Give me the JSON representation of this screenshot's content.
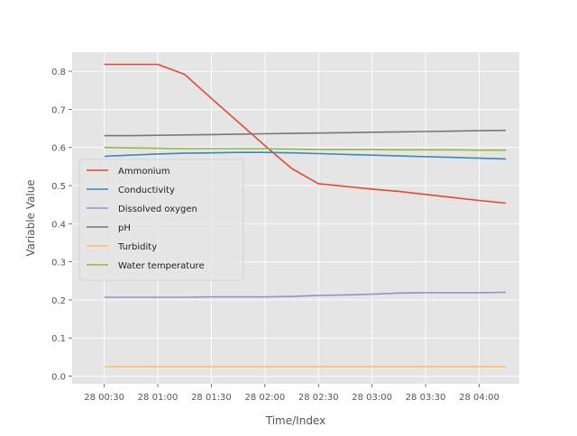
{
  "chart_data": {
    "type": "line",
    "title": "",
    "xlabel": "Time/Index",
    "ylabel": "Variable Value",
    "x": [
      "00:30",
      "00:45",
      "01:00",
      "01:15",
      "01:30",
      "01:45",
      "02:00",
      "02:15",
      "02:30",
      "02:45",
      "03:00",
      "03:15",
      "03:30",
      "03:45",
      "04:00",
      "04:15"
    ],
    "x_tick_labels": [
      "28 00:30",
      "28 01:00",
      "28 01:30",
      "28 02:00",
      "28 02:30",
      "28 03:00",
      "28 03:30",
      "28 04:00"
    ],
    "ylim": [
      -0.02,
      0.85
    ],
    "y_ticks": [
      0.0,
      0.1,
      0.2,
      0.3,
      0.4,
      0.5,
      0.6,
      0.7,
      0.8
    ],
    "y_tick_labels": [
      "0.0",
      "0.1",
      "0.2",
      "0.3",
      "0.4",
      "0.5",
      "0.6",
      "0.7",
      "0.8"
    ],
    "grid": true,
    "style": "ggplot",
    "legend_position": "center-left",
    "series": [
      {
        "name": "Ammonium",
        "color": "#E24A33",
        "values": [
          0.818,
          0.818,
          0.818,
          0.792,
          0.729,
          0.667,
          0.605,
          0.545,
          0.505,
          0.498,
          0.491,
          0.485,
          0.477,
          0.469,
          0.461,
          0.454
        ]
      },
      {
        "name": "Conductivity",
        "color": "#348ABD",
        "values": [
          0.577,
          0.58,
          0.583,
          0.585,
          0.586,
          0.587,
          0.587,
          0.586,
          0.584,
          0.582,
          0.58,
          0.578,
          0.576,
          0.574,
          0.572,
          0.57
        ]
      },
      {
        "name": "Dissolved oxygen",
        "color": "#988ED5",
        "values": [
          0.207,
          0.207,
          0.207,
          0.207,
          0.208,
          0.208,
          0.208,
          0.209,
          0.212,
          0.213,
          0.215,
          0.218,
          0.219,
          0.219,
          0.219,
          0.22
        ]
      },
      {
        "name": "pH",
        "color": "#777777",
        "values": [
          0.631,
          0.631,
          0.632,
          0.633,
          0.634,
          0.635,
          0.636,
          0.637,
          0.638,
          0.639,
          0.64,
          0.641,
          0.642,
          0.643,
          0.644,
          0.645
        ]
      },
      {
        "name": "Turbidity",
        "color": "#FBC15E",
        "values": [
          0.025,
          0.025,
          0.025,
          0.025,
          0.025,
          0.025,
          0.025,
          0.025,
          0.025,
          0.025,
          0.025,
          0.025,
          0.025,
          0.025,
          0.025,
          0.025
        ]
      },
      {
        "name": "Water temperature",
        "color": "#8EBA42",
        "values": [
          0.6,
          0.599,
          0.598,
          0.597,
          0.597,
          0.597,
          0.597,
          0.596,
          0.595,
          0.595,
          0.595,
          0.594,
          0.594,
          0.594,
          0.593,
          0.593
        ]
      }
    ]
  }
}
